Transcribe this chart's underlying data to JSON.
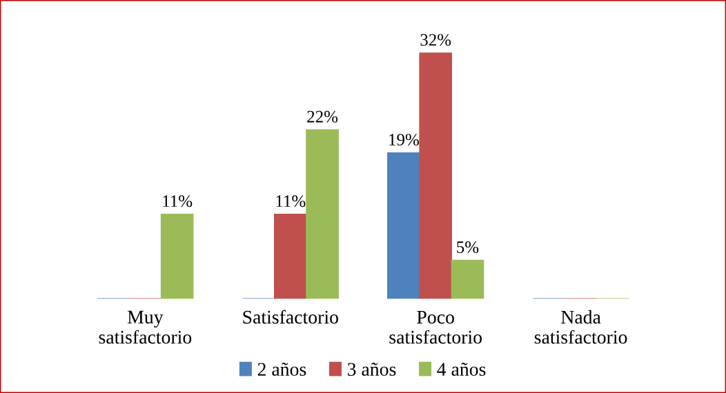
{
  "chart_data": {
    "type": "bar",
    "categories": [
      "Muy\nsatisfactorio",
      "Satisfactorio",
      "Poco\nsatisfactorio",
      "Nada\nsatisfactorio"
    ],
    "series": [
      {
        "name": "2 años",
        "color": "#4f81bd",
        "values": [
          0,
          0,
          19,
          0
        ],
        "value_labels": [
          null,
          null,
          "19%",
          null
        ]
      },
      {
        "name": "3 años",
        "color": "#c0504d",
        "values": [
          0,
          11,
          32,
          0
        ],
        "value_labels": [
          null,
          "11%",
          "32%",
          null
        ]
      },
      {
        "name": "4 años",
        "color": "#9bbb59",
        "values": [
          11,
          22,
          5,
          0
        ],
        "value_labels": [
          "11%",
          "22%",
          "5%",
          null
        ]
      }
    ],
    "legend": "bottom",
    "grid": false
  }
}
